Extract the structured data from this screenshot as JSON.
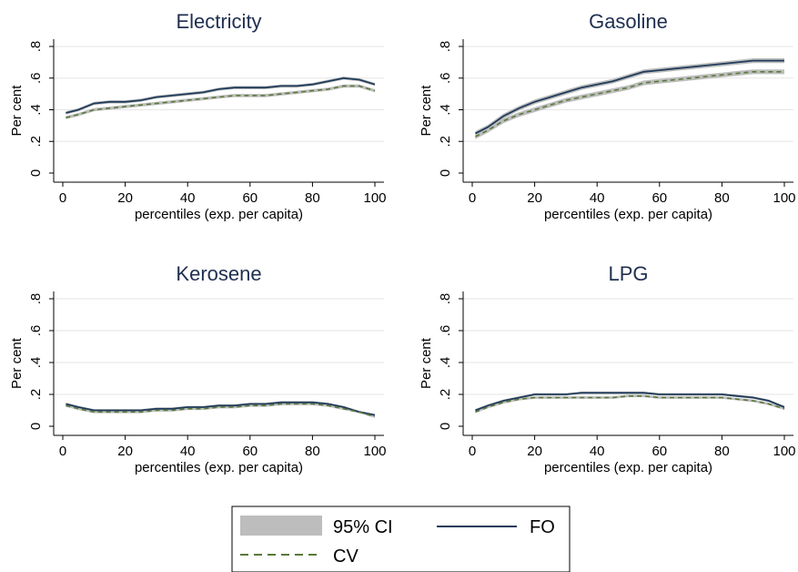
{
  "chart_data": [
    {
      "type": "line",
      "title": "Electricity",
      "xlabel": "percentiles (exp. per capita)",
      "ylabel": "Per cent",
      "xlim": [
        0,
        100
      ],
      "ylim": [
        0,
        0.8
      ],
      "xticks": [
        "0",
        "20",
        "40",
        "60",
        "80",
        "100"
      ],
      "yticks": [
        "0",
        ".2",
        ".4",
        ".6",
        ".8"
      ],
      "grid": true,
      "x": [
        1,
        5,
        10,
        15,
        20,
        25,
        30,
        35,
        40,
        45,
        50,
        55,
        60,
        65,
        70,
        75,
        80,
        85,
        90,
        95,
        100
      ],
      "series": [
        {
          "name": "FO",
          "values": [
            0.38,
            0.4,
            0.44,
            0.45,
            0.45,
            0.46,
            0.48,
            0.49,
            0.5,
            0.51,
            0.53,
            0.54,
            0.54,
            0.54,
            0.55,
            0.55,
            0.56,
            0.58,
            0.6,
            0.59,
            0.56
          ],
          "ci_halfwidth": 0.01
        },
        {
          "name": "CV",
          "values": [
            0.35,
            0.37,
            0.4,
            0.41,
            0.42,
            0.43,
            0.44,
            0.45,
            0.46,
            0.47,
            0.48,
            0.49,
            0.49,
            0.49,
            0.5,
            0.51,
            0.52,
            0.53,
            0.55,
            0.55,
            0.52
          ],
          "ci_halfwidth": 0.01
        }
      ]
    },
    {
      "type": "line",
      "title": "Gasoline",
      "xlabel": "percentiles (exp. per capita)",
      "ylabel": "Per cent",
      "xlim": [
        0,
        100
      ],
      "ylim": [
        0,
        0.8
      ],
      "xticks": [
        "0",
        "20",
        "40",
        "60",
        "80",
        "100"
      ],
      "yticks": [
        "0",
        ".2",
        ".4",
        ".6",
        ".8"
      ],
      "grid": true,
      "x": [
        1,
        5,
        10,
        15,
        20,
        25,
        30,
        35,
        40,
        45,
        50,
        55,
        60,
        65,
        70,
        75,
        80,
        85,
        90,
        95,
        100
      ],
      "series": [
        {
          "name": "FO",
          "values": [
            0.25,
            0.29,
            0.36,
            0.41,
            0.45,
            0.48,
            0.51,
            0.54,
            0.56,
            0.58,
            0.61,
            0.64,
            0.65,
            0.66,
            0.67,
            0.68,
            0.69,
            0.7,
            0.71,
            0.71,
            0.71
          ],
          "ci_halfwidth": 0.015
        },
        {
          "name": "CV",
          "values": [
            0.23,
            0.27,
            0.33,
            0.37,
            0.4,
            0.43,
            0.46,
            0.48,
            0.5,
            0.52,
            0.54,
            0.57,
            0.58,
            0.59,
            0.6,
            0.61,
            0.62,
            0.63,
            0.64,
            0.64,
            0.64
          ],
          "ci_halfwidth": 0.015
        }
      ]
    },
    {
      "type": "line",
      "title": "Kerosene",
      "xlabel": "percentiles (exp. per capita)",
      "ylabel": "Per cent",
      "xlim": [
        0,
        100
      ],
      "ylim": [
        0,
        0.8
      ],
      "xticks": [
        "0",
        "20",
        "40",
        "60",
        "80",
        "100"
      ],
      "yticks": [
        "0",
        ".2",
        ".4",
        ".6",
        ".8"
      ],
      "grid": true,
      "x": [
        1,
        5,
        10,
        15,
        20,
        25,
        30,
        35,
        40,
        45,
        50,
        55,
        60,
        65,
        70,
        75,
        80,
        85,
        90,
        95,
        100
      ],
      "series": [
        {
          "name": "FO",
          "values": [
            0.14,
            0.12,
            0.1,
            0.1,
            0.1,
            0.1,
            0.11,
            0.11,
            0.12,
            0.12,
            0.13,
            0.13,
            0.14,
            0.14,
            0.15,
            0.15,
            0.15,
            0.14,
            0.12,
            0.09,
            0.07
          ],
          "ci_halfwidth": 0.008
        },
        {
          "name": "CV",
          "values": [
            0.13,
            0.11,
            0.09,
            0.09,
            0.09,
            0.09,
            0.1,
            0.1,
            0.11,
            0.11,
            0.12,
            0.12,
            0.13,
            0.13,
            0.14,
            0.14,
            0.14,
            0.13,
            0.11,
            0.09,
            0.06
          ],
          "ci_halfwidth": 0.008
        }
      ]
    },
    {
      "type": "line",
      "title": "LPG",
      "xlabel": "percentiles (exp. per capita)",
      "ylabel": "Per cent",
      "xlim": [
        0,
        100
      ],
      "ylim": [
        0,
        0.8
      ],
      "xticks": [
        "0",
        "20",
        "40",
        "60",
        "80",
        "100"
      ],
      "yticks": [
        "0",
        ".2",
        ".4",
        ".6",
        ".8"
      ],
      "grid": true,
      "x": [
        1,
        5,
        10,
        15,
        20,
        25,
        30,
        35,
        40,
        45,
        50,
        55,
        60,
        65,
        70,
        75,
        80,
        85,
        90,
        95,
        100
      ],
      "series": [
        {
          "name": "FO",
          "values": [
            0.1,
            0.13,
            0.16,
            0.18,
            0.2,
            0.2,
            0.2,
            0.21,
            0.21,
            0.21,
            0.21,
            0.21,
            0.2,
            0.2,
            0.2,
            0.2,
            0.2,
            0.19,
            0.18,
            0.16,
            0.12
          ],
          "ci_halfwidth": 0.008
        },
        {
          "name": "CV",
          "values": [
            0.09,
            0.12,
            0.15,
            0.17,
            0.18,
            0.18,
            0.18,
            0.18,
            0.18,
            0.18,
            0.19,
            0.19,
            0.18,
            0.18,
            0.18,
            0.18,
            0.18,
            0.17,
            0.16,
            0.14,
            0.11
          ],
          "ci_halfwidth": 0.008
        }
      ]
    }
  ],
  "legend": {
    "position": "bottom-center",
    "entries": [
      {
        "label": "95% CI",
        "kind": "band"
      },
      {
        "label": "FO",
        "kind": "solid"
      },
      {
        "label": "CV",
        "kind": "dashed"
      }
    ]
  },
  "colors": {
    "fo": "#1f3b5a",
    "cv": "#5a7a3a",
    "ci": "#bdbdbd",
    "grid": "#e6e6e6",
    "title": "#1f2f4f",
    "axis": "#000000"
  }
}
